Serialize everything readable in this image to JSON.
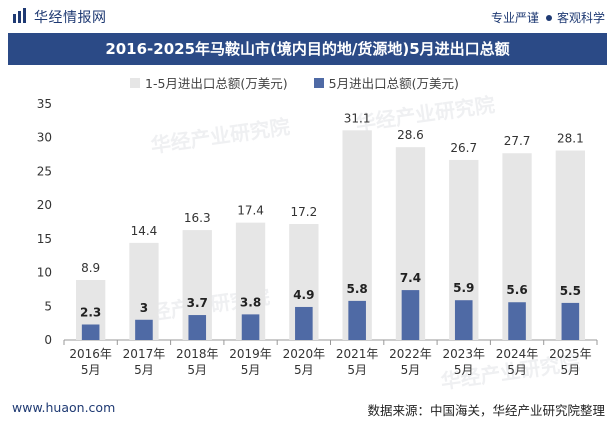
{
  "header": {
    "brand": "华经情报网",
    "tagline_left": "专业严谨",
    "tagline_right": "客观科学"
  },
  "footer": {
    "url": "www.huaon.com",
    "source": "数据来源：中国海关，华经产业研究院整理"
  },
  "watermark": "华经产业研究院",
  "colors": {
    "brand": "#1f3a73",
    "title_bg": "#2b4a86",
    "series_total": "#e6e6e6",
    "series_may": "#4f6aa5"
  },
  "chart_data": {
    "type": "bar",
    "title": "2016-2025年马鞍山市(境内目的地/货源地)5月进出口总额",
    "categories": [
      "2016年\n5月",
      "2017年\n5月",
      "2018年\n5月",
      "2019年\n5月",
      "2020年\n5月",
      "2021年\n5月",
      "2022年\n5月",
      "2023年\n5月",
      "2024年\n5月",
      "2025年\n5月"
    ],
    "series": [
      {
        "name": "1-5月进出口总额(万美元)",
        "values": [
          8.9,
          14.4,
          16.3,
          17.4,
          17.2,
          31.1,
          28.6,
          26.7,
          27.7,
          28.1
        ]
      },
      {
        "name": "5月进出口总额(万美元)",
        "values": [
          2.3,
          3,
          3.7,
          3.8,
          4.9,
          5.8,
          7.4,
          5.9,
          5.6,
          5.5
        ]
      }
    ],
    "ylim": [
      0,
      35
    ],
    "yticks": [
      0,
      5,
      10,
      15,
      20,
      25,
      30,
      35
    ],
    "legend_position": "top",
    "grid": false
  }
}
